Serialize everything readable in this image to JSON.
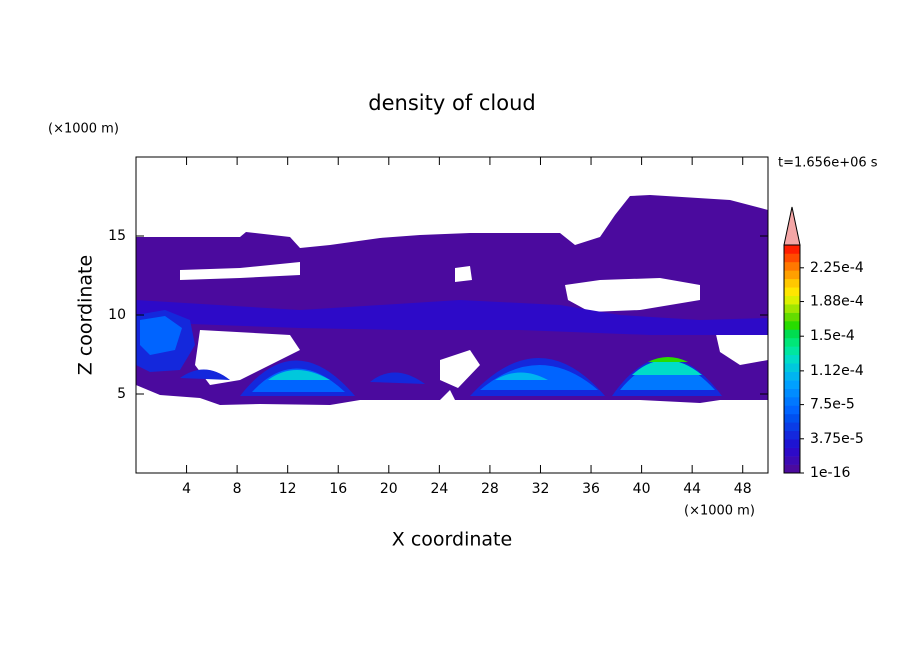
{
  "chart_data": {
    "type": "contour",
    "title": "density of cloud",
    "x_label": "X coordinate",
    "y_label": "Z coordinate",
    "x_unit": "(×1000 m)",
    "y_unit": "(×1000 m)",
    "time_label": "t=1.656e+06 s",
    "xlim": [
      0,
      50
    ],
    "ylim": [
      0,
      20
    ],
    "xticks": [
      4,
      8,
      12,
      16,
      20,
      24,
      28,
      32,
      36,
      40,
      44,
      48
    ],
    "yticks": [
      5,
      10,
      15
    ],
    "colorbar": {
      "clim": [
        0,
        0.00025
      ],
      "colors": [
        "#4b0a9e",
        "#3c0ab4",
        "#2d0ac8",
        "#1e14d2",
        "#1428dc",
        "#0a3ce6",
        "#0050f0",
        "#0064ff",
        "#0078ff",
        "#008cff",
        "#00a0ff",
        "#00b4f0",
        "#00c8dc",
        "#00dcc8",
        "#00e6a0",
        "#00e678",
        "#00dc50",
        "#28dc00",
        "#64dc00",
        "#a0e600",
        "#dcf000",
        "#ffe600",
        "#ffc800",
        "#ffa000",
        "#ff7800",
        "#ff4b00",
        "#ff1e00"
      ],
      "extend_color": "#f4a6a6",
      "ticks": [
        {
          "value": 1e-16,
          "label": "1e-16"
        },
        {
          "value": 3.75e-05,
          "label": "3.75e-5"
        },
        {
          "value": 7.5e-05,
          "label": "7.5e-5"
        },
        {
          "value": 0.000112,
          "label": "1.12e-4"
        },
        {
          "value": 0.00015,
          "label": "1.5e-4"
        },
        {
          "value": 0.000188,
          "label": "1.88e-4"
        },
        {
          "value": 0.000225,
          "label": "2.25e-4"
        }
      ]
    }
  }
}
